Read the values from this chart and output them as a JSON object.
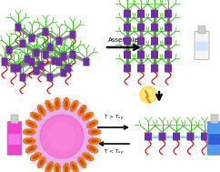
{
  "background_color": "#ffffff",
  "fig_width": 2.42,
  "fig_height": 1.89,
  "dpi": 100,
  "assemble_label": "Assemble",
  "assemble_fontsize": 5.0,
  "equil_label_top": "T > T$_{sp}$",
  "equil_label_bot": "T < T$_{sp}$",
  "equil_fontsize": 4.2,
  "colors": {
    "green": "#22bb00",
    "purple": "#7030a0",
    "red": "#cc0000",
    "dark_gray": "#555555",
    "gray_seg": "#888888",
    "cyan": "#44ccdd",
    "orange": "#ee7700",
    "orange_dark": "#cc4400",
    "pink_glow": "#ee44bb",
    "purple_glow": "#bb88ee",
    "light_purple_glow": "#ddaaff"
  }
}
